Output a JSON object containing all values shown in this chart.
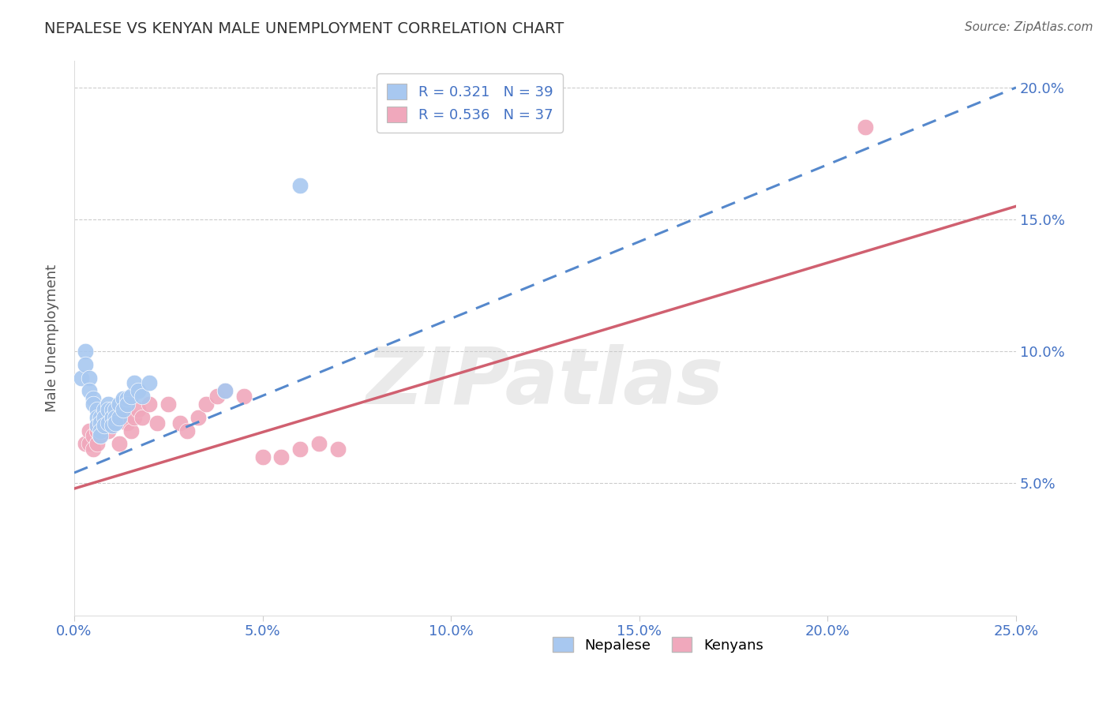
{
  "title": "NEPALESE VS KENYAN MALE UNEMPLOYMENT CORRELATION CHART",
  "source": "Source: ZipAtlas.com",
  "ylabel": "Male Unemployment",
  "xlim": [
    0.0,
    0.25
  ],
  "ylim": [
    0.0,
    0.21
  ],
  "xticks": [
    0.0,
    0.05,
    0.1,
    0.15,
    0.2,
    0.25
  ],
  "yticks": [
    0.05,
    0.1,
    0.15,
    0.2
  ],
  "ytick_labels": [
    "5.0%",
    "10.0%",
    "15.0%",
    "20.0%"
  ],
  "xtick_labels": [
    "0.0%",
    "5.0%",
    "10.0%",
    "15.0%",
    "20.0%",
    "25.0%"
  ],
  "nepalese_R": "0.321",
  "nepalese_N": "39",
  "kenyan_R": "0.536",
  "kenyan_N": "37",
  "nepalese_color": "#A8C8F0",
  "kenyan_color": "#F0A8BC",
  "nepalese_line_color": "#5588CC",
  "kenyan_line_color": "#D06070",
  "blue_color": "#4472C4",
  "legend_label1": "Nepalese",
  "legend_label2": "Kenyans",
  "nepalese_x": [
    0.002,
    0.003,
    0.003,
    0.004,
    0.004,
    0.005,
    0.005,
    0.006,
    0.006,
    0.006,
    0.007,
    0.007,
    0.007,
    0.007,
    0.008,
    0.008,
    0.008,
    0.009,
    0.009,
    0.009,
    0.01,
    0.01,
    0.01,
    0.011,
    0.011,
    0.011,
    0.012,
    0.012,
    0.013,
    0.013,
    0.014,
    0.014,
    0.015,
    0.016,
    0.017,
    0.018,
    0.02,
    0.04,
    0.06
  ],
  "nepalese_y": [
    0.09,
    0.1,
    0.095,
    0.09,
    0.085,
    0.082,
    0.08,
    0.078,
    0.075,
    0.072,
    0.075,
    0.073,
    0.07,
    0.068,
    0.078,
    0.075,
    0.072,
    0.08,
    0.078,
    0.073,
    0.078,
    0.075,
    0.072,
    0.078,
    0.075,
    0.073,
    0.08,
    0.075,
    0.082,
    0.078,
    0.082,
    0.08,
    0.083,
    0.088,
    0.085,
    0.083,
    0.088,
    0.085,
    0.163
  ],
  "kenyan_x": [
    0.003,
    0.004,
    0.004,
    0.005,
    0.005,
    0.006,
    0.006,
    0.007,
    0.007,
    0.008,
    0.009,
    0.01,
    0.01,
    0.011,
    0.012,
    0.013,
    0.014,
    0.015,
    0.016,
    0.017,
    0.018,
    0.02,
    0.022,
    0.025,
    0.028,
    0.03,
    0.033,
    0.035,
    0.038,
    0.04,
    0.045,
    0.05,
    0.055,
    0.06,
    0.065,
    0.07,
    0.21
  ],
  "kenyan_y": [
    0.065,
    0.07,
    0.065,
    0.068,
    0.063,
    0.07,
    0.065,
    0.073,
    0.068,
    0.075,
    0.07,
    0.073,
    0.078,
    0.075,
    0.065,
    0.075,
    0.073,
    0.07,
    0.075,
    0.078,
    0.075,
    0.08,
    0.073,
    0.08,
    0.073,
    0.07,
    0.075,
    0.08,
    0.083,
    0.085,
    0.083,
    0.06,
    0.06,
    0.063,
    0.065,
    0.063,
    0.185
  ],
  "nepalese_line_start_y": 0.054,
  "nepalese_line_end_y": 0.2,
  "kenyan_line_start_y": 0.048,
  "kenyan_line_end_y": 0.155,
  "watermark_text": "ZIPatlas",
  "background_color": "#FFFFFF",
  "grid_color": "#CCCCCC"
}
